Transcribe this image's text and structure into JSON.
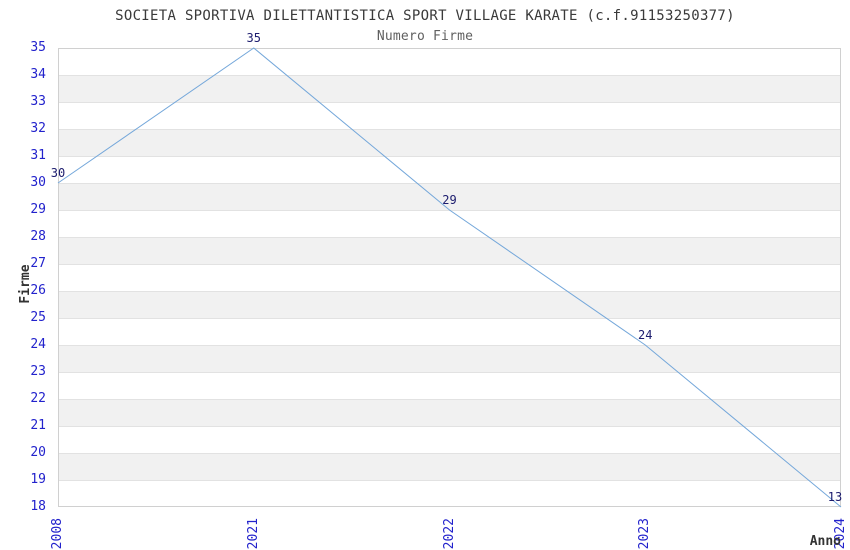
{
  "chart_data": {
    "type": "line",
    "title": "SOCIETA SPORTIVA DILETTANTISTICA SPORT VILLAGE KARATE (c.f.91153250377)",
    "subtitle": "Numero Firme",
    "xlabel": "Anno",
    "ylabel": "Firme",
    "categories": [
      "2008",
      "2021",
      "2022",
      "2023",
      "2024"
    ],
    "series": [
      {
        "name": "Numero Firme",
        "values": [
          30,
          35,
          29,
          24,
          13
        ]
      }
    ],
    "point_labels": [
      "30",
      "35",
      "29",
      "24",
      "13"
    ],
    "ylim": [
      18,
      35
    ],
    "y_ticks": [
      18,
      19,
      20,
      21,
      22,
      23,
      24,
      25,
      26,
      27,
      28,
      29,
      30,
      31,
      32,
      33,
      34,
      35
    ],
    "grid": "horizontal-unit-bands",
    "legend": "none",
    "clamp_to_ylim": true,
    "colors": {
      "line": "#74a7da",
      "axis_tick_labels": "#2222cc",
      "point_labels": "#1c1c6e",
      "band_fill": "#f1f1f1",
      "grid_line": "#e2e2e2",
      "plot_border": "#d0d0d0",
      "title": "#3a3a3a",
      "subtitle": "#606060",
      "axis_titles": "#333333",
      "background": "#ffffff"
    }
  }
}
